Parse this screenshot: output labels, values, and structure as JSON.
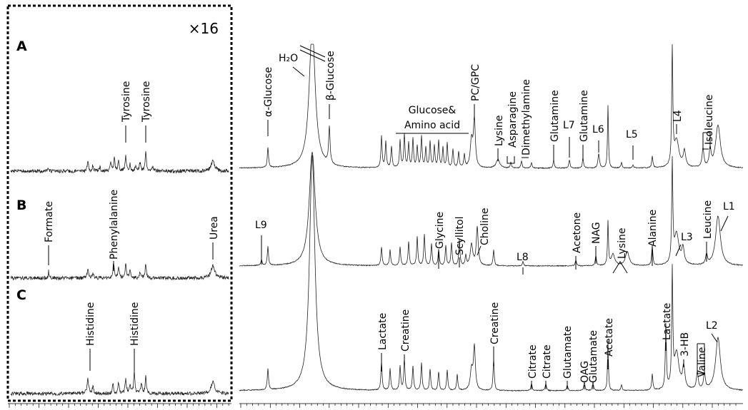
{
  "chart_data": {
    "type": "line",
    "title": "",
    "xlabel": "",
    "ylabel": "",
    "inset": {
      "scale_label": "×16",
      "region": "aromatic region, magnified"
    },
    "panels": [
      {
        "id": "A",
        "label": "A",
        "annotations": [
          {
            "text": "Tyrosine",
            "region": "inset"
          },
          {
            "text": "Tyrosine",
            "region": "inset"
          },
          {
            "text": "α-Glucose",
            "region": "main"
          },
          {
            "text": "H₂O",
            "region": "main"
          },
          {
            "text": "β-Glucose",
            "region": "main"
          },
          {
            "text": "Glucose&",
            "region": "main"
          },
          {
            "text": "Amino acid",
            "region": "main"
          },
          {
            "text": "PC/GPC",
            "region": "main"
          },
          {
            "text": "Lysine",
            "region": "main"
          },
          {
            "text": "Asparagine",
            "region": "main"
          },
          {
            "text": "Dimethylamine",
            "region": "main"
          },
          {
            "text": "Glutamine",
            "region": "main"
          },
          {
            "text": "L7",
            "region": "main"
          },
          {
            "text": "Glutamine",
            "region": "main"
          },
          {
            "text": "L6",
            "region": "main"
          },
          {
            "text": "L5",
            "region": "main"
          },
          {
            "text": "L4",
            "region": "main"
          },
          {
            "text": "Isoleucine",
            "region": "main"
          }
        ]
      },
      {
        "id": "B",
        "label": "B",
        "annotations": [
          {
            "text": "Formate",
            "region": "inset"
          },
          {
            "text": "Phenylalanine",
            "region": "inset"
          },
          {
            "text": "Urea",
            "region": "inset"
          },
          {
            "text": "L9",
            "region": "main"
          },
          {
            "text": "Glycine",
            "region": "main"
          },
          {
            "text": "Scyllitol",
            "region": "main"
          },
          {
            "text": "Choline",
            "region": "main"
          },
          {
            "text": "L8",
            "region": "main"
          },
          {
            "text": "Acetone",
            "region": "main"
          },
          {
            "text": "NAG",
            "region": "main"
          },
          {
            "text": "Lysine",
            "region": "main"
          },
          {
            "text": "Alanine",
            "region": "main"
          },
          {
            "text": "L3",
            "region": "main"
          },
          {
            "text": "Leucine",
            "region": "main"
          },
          {
            "text": "L1",
            "region": "main"
          }
        ]
      },
      {
        "id": "C",
        "label": "C",
        "annotations": [
          {
            "text": "Histidine",
            "region": "inset"
          },
          {
            "text": "Histidine",
            "region": "inset"
          },
          {
            "text": "Lactate",
            "region": "main"
          },
          {
            "text": "Creatine",
            "region": "main"
          },
          {
            "text": "Creatine",
            "region": "main"
          },
          {
            "text": "Citrate",
            "region": "main"
          },
          {
            "text": "Citrate",
            "region": "main"
          },
          {
            "text": "Glutamate",
            "region": "main"
          },
          {
            "text": "OAG",
            "region": "main"
          },
          {
            "text": "Glutamate",
            "region": "main"
          },
          {
            "text": "Acetate",
            "region": "main"
          },
          {
            "text": "Lactate",
            "region": "main"
          },
          {
            "text": "3-HB",
            "region": "main"
          },
          {
            "text": "Valine",
            "region": "main"
          },
          {
            "text": "L2",
            "region": "main"
          }
        ]
      }
    ],
    "grid": false,
    "legend": "none"
  }
}
